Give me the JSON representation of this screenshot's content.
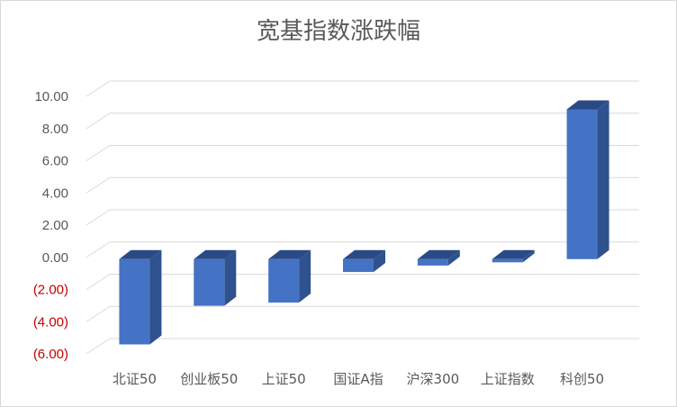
{
  "chart_data": {
    "type": "bar",
    "title": "宽基指数涨跌幅",
    "categories": [
      "北证50",
      "创业板50",
      "上证50",
      "国证A指",
      "沪深300",
      "上证指数",
      "科创50"
    ],
    "values": [
      -5.3,
      -2.9,
      -2.7,
      -0.8,
      -0.4,
      -0.2,
      9.3
    ],
    "ylim": [
      -6,
      10
    ],
    "yticks": [
      "(6.00)",
      "(4.00)",
      "(2.00)",
      "0.00",
      "2.00",
      "4.00",
      "6.00",
      "8.00",
      "10.00"
    ],
    "grid": true,
    "style": "3d-clustered-column",
    "colors": {
      "bar_front": "#4472C4",
      "bar_side": "#2F528F",
      "bar_top": "#2A4A86",
      "negative_tick": "#C00000",
      "positive_tick": "#595959"
    }
  }
}
